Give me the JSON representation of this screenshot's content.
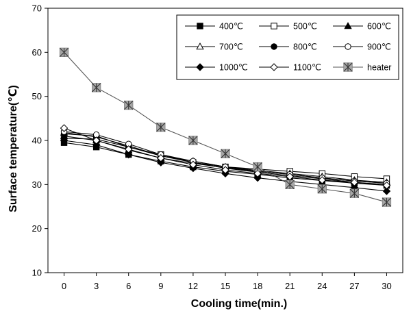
{
  "chart_data": {
    "type": "line",
    "xlabel": "Cooling time(min.)",
    "ylabel": "Surface temperature(℃)",
    "x": [
      0,
      3,
      6,
      9,
      12,
      15,
      18,
      21,
      24,
      27,
      30
    ],
    "xlim": [
      -1.5,
      31.5
    ],
    "ylim": [
      10,
      70
    ],
    "yticks": [
      10,
      20,
      30,
      40,
      50,
      60,
      70
    ],
    "grid": false,
    "legend_position": "top-right",
    "series": [
      {
        "name": "400℃",
        "marker": "square-filled",
        "values": [
          39.5,
          38.5,
          36.8,
          35.3,
          34.0,
          33.0,
          32.3,
          31.5,
          30.9,
          30.3,
          29.8
        ]
      },
      {
        "name": "500℃",
        "marker": "square-open",
        "values": [
          40.5,
          40.3,
          38.5,
          36.8,
          35.0,
          34.0,
          33.5,
          33.0,
          32.5,
          31.8,
          31.3
        ]
      },
      {
        "name": "600℃",
        "marker": "triangle-filled",
        "values": [
          41.0,
          40.0,
          37.8,
          36.0,
          34.8,
          33.8,
          33.0,
          32.3,
          31.5,
          30.8,
          30.3
        ]
      },
      {
        "name": "700℃",
        "marker": "triangle-open",
        "values": [
          41.8,
          40.8,
          38.8,
          36.5,
          35.3,
          34.0,
          33.2,
          32.5,
          31.8,
          31.0,
          30.5
        ]
      },
      {
        "name": "800℃",
        "marker": "circle-filled",
        "values": [
          41.5,
          41.0,
          38.5,
          36.5,
          35.0,
          33.7,
          32.8,
          32.0,
          31.3,
          30.5,
          30.0
        ]
      },
      {
        "name": "900℃",
        "marker": "circle-open",
        "values": [
          42.0,
          41.3,
          39.2,
          36.8,
          35.3,
          34.0,
          33.0,
          32.3,
          31.5,
          30.8,
          30.3
        ]
      },
      {
        "name": "1000℃",
        "marker": "diamond-filled",
        "values": [
          40.0,
          39.0,
          36.8,
          35.0,
          33.7,
          32.5,
          31.5,
          30.7,
          30.0,
          29.3,
          28.5
        ]
      },
      {
        "name": "1100℃",
        "marker": "diamond-open",
        "values": [
          42.8,
          40.0,
          38.0,
          36.0,
          34.5,
          33.3,
          32.5,
          31.8,
          31.0,
          30.5,
          29.8
        ]
      },
      {
        "name": "heater",
        "marker": "asterisk-box",
        "values": [
          60.0,
          52.0,
          48.0,
          43.0,
          40.0,
          37.0,
          34.0,
          30.0,
          29.0,
          28.0,
          26.0
        ]
      }
    ]
  }
}
